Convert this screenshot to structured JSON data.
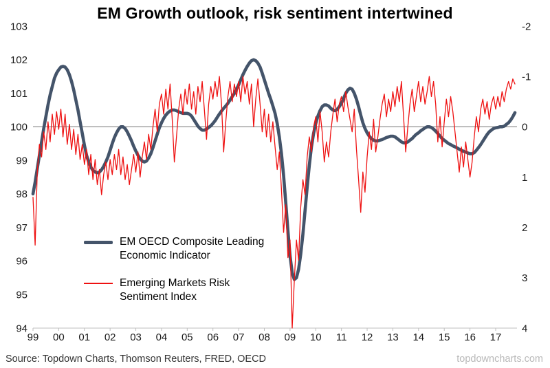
{
  "header": {
    "title": "EM Growth outlook, risk sentiment intertwined"
  },
  "legend": {
    "items": [
      {
        "label": "EM OECD Composite Leading Economic Indicator",
        "color": "#44546a",
        "style": "thick"
      },
      {
        "label": "Emerging Markets Risk Sentiment Index",
        "color": "#ee1111",
        "style": "thin"
      }
    ]
  },
  "footer": {
    "source": "Source: Topdown Charts, Thomson Reuters, FRED, OECD",
    "watermark": "topdowncharts.com"
  },
  "chart_data": {
    "type": "line",
    "title": "EM Growth outlook, risk sentiment intertwined",
    "x_axis": {
      "range": [
        1999,
        2017.83
      ],
      "tick_years": [
        1999,
        2000,
        2001,
        2002,
        2003,
        2004,
        2005,
        2006,
        2007,
        2008,
        2009,
        2010,
        2011,
        2012,
        2013,
        2014,
        2015,
        2016,
        2017
      ],
      "tick_labels": [
        "99",
        "00",
        "01",
        "02",
        "03",
        "04",
        "05",
        "06",
        "07",
        "08",
        "09",
        "10",
        "11",
        "12",
        "13",
        "14",
        "15",
        "16",
        "17"
      ]
    },
    "y_axis_left": {
      "min": 94,
      "max": 103,
      "ticks": [
        103,
        102,
        101,
        100,
        99,
        98,
        97,
        96,
        95,
        94
      ]
    },
    "y_axis_right": {
      "top": -2,
      "bottom": 4,
      "ticks": [
        -2,
        -1,
        0,
        1,
        2,
        3,
        4
      ]
    },
    "reference_line": {
      "axis": "left",
      "value": 100,
      "color": "#9a9a9a"
    },
    "axis_line_color": "#bfbfbf",
    "series": [
      {
        "name": "EM OECD Composite Leading Economic Indicator",
        "axis": "left",
        "color": "#44546a",
        "width": 4.6,
        "x_start": 1999.0,
        "x_step_years": 0.0833333,
        "values": [
          98.0,
          98.35,
          98.75,
          99.15,
          99.55,
          99.95,
          100.3,
          100.65,
          100.95,
          101.2,
          101.45,
          101.6,
          101.7,
          101.78,
          101.8,
          101.78,
          101.7,
          101.55,
          101.35,
          101.1,
          100.8,
          100.5,
          100.15,
          99.8,
          99.45,
          99.15,
          98.95,
          98.8,
          98.7,
          98.65,
          98.63,
          98.65,
          98.72,
          98.82,
          98.95,
          99.1,
          99.3,
          99.5,
          99.68,
          99.82,
          99.93,
          100.0,
          100.0,
          99.95,
          99.85,
          99.72,
          99.58,
          99.42,
          99.28,
          99.15,
          99.05,
          98.98,
          98.95,
          98.98,
          99.07,
          99.2,
          99.38,
          99.58,
          99.78,
          99.97,
          100.12,
          100.25,
          100.35,
          100.42,
          100.47,
          100.5,
          100.5,
          100.48,
          100.45,
          100.42,
          100.4,
          100.4,
          100.4,
          100.38,
          100.32,
          100.22,
          100.12,
          100.02,
          99.95,
          99.9,
          99.9,
          99.93,
          99.98,
          100.03,
          100.1,
          100.18,
          100.28,
          100.38,
          100.47,
          100.55,
          100.62,
          100.7,
          100.8,
          100.9,
          101.0,
          101.12,
          101.25,
          101.4,
          101.55,
          101.68,
          101.8,
          101.9,
          101.97,
          102.0,
          101.97,
          101.9,
          101.78,
          101.6,
          101.4,
          101.2,
          101.0,
          100.82,
          100.62,
          100.4,
          100.1,
          99.7,
          99.2,
          98.55,
          97.75,
          96.9,
          96.15,
          95.65,
          95.45,
          95.5,
          95.75,
          96.2,
          96.8,
          97.5,
          98.2,
          98.85,
          99.4,
          99.8,
          100.1,
          100.32,
          100.48,
          100.6,
          100.65,
          100.65,
          100.62,
          100.55,
          100.5,
          100.48,
          100.52,
          100.6,
          100.7,
          100.85,
          101.0,
          101.1,
          101.15,
          101.12,
          101.0,
          100.82,
          100.6,
          100.35,
          100.12,
          99.95,
          99.82,
          99.72,
          99.65,
          99.6,
          99.58,
          99.58,
          99.6,
          99.62,
          99.65,
          99.68,
          99.7,
          99.72,
          99.72,
          99.7,
          99.65,
          99.6,
          99.55,
          99.52,
          99.52,
          99.55,
          99.6,
          99.65,
          99.72,
          99.78,
          99.82,
          99.88,
          99.92,
          99.97,
          100.0,
          100.0,
          99.98,
          99.93,
          99.87,
          99.8,
          99.72,
          99.65,
          99.6,
          99.55,
          99.5,
          99.47,
          99.43,
          99.4,
          99.37,
          99.33,
          99.3,
          99.27,
          99.25,
          99.22,
          99.2,
          99.2,
          99.23,
          99.3,
          99.38,
          99.47,
          99.57,
          99.67,
          99.77,
          99.85,
          99.9,
          99.95,
          99.97,
          99.98,
          100.0,
          100.0,
          100.02,
          100.07,
          100.12,
          100.2,
          100.3,
          100.42
        ]
      },
      {
        "name": "Emerging Markets Risk Sentiment Index",
        "axis": "right",
        "color": "#ee1111",
        "width": 1.3,
        "x_start": 1999.0,
        "x_step_years": 0.0833333,
        "values": [
          1.4,
          2.35,
          0.9,
          0.35,
          0.6,
          0.1,
          0.45,
          -0.1,
          0.3,
          -0.25,
          0.15,
          -0.3,
          0.05,
          -0.35,
          0.2,
          -0.25,
          0.35,
          -0.05,
          0.45,
          0.05,
          0.55,
          0.15,
          0.65,
          0.35,
          0.75,
          0.45,
          0.95,
          0.55,
          1.05,
          0.65,
          1.15,
          0.85,
          1.35,
          0.95,
          0.7,
          1.05,
          0.65,
          0.95,
          0.55,
          0.85,
          0.45,
          0.95,
          0.6,
          1.05,
          0.75,
          1.15,
          0.85,
          0.55,
          0.9,
          0.5,
          1.0,
          0.6,
          0.3,
          0.65,
          0.15,
          0.45,
          0.0,
          -0.35,
          0.1,
          -0.45,
          -0.65,
          -0.25,
          -0.75,
          -0.35,
          -0.85,
          -0.15,
          0.7,
          0.2,
          -0.35,
          -0.65,
          -0.25,
          -0.75,
          -0.45,
          -0.85,
          -0.35,
          -0.7,
          -0.25,
          -0.8,
          -0.5,
          -0.9,
          -0.35,
          0.25,
          -0.45,
          -0.8,
          -0.55,
          -0.9,
          -0.6,
          -1.0,
          -0.45,
          0.5,
          -0.1,
          -0.6,
          -0.9,
          -0.5,
          -0.85,
          -0.6,
          -0.9,
          -0.5,
          -1.0,
          -0.65,
          -0.9,
          -0.45,
          -0.85,
          0.0,
          -0.55,
          -0.95,
          -0.45,
          0.1,
          -0.35,
          0.2,
          -0.25,
          0.3,
          -0.1,
          0.4,
          0.85,
          0.5,
          1.25,
          2.1,
          1.55,
          2.6,
          2.25,
          4.0,
          3.05,
          2.25,
          2.65,
          1.6,
          1.05,
          1.35,
          0.6,
          0.2,
          0.5,
          0.0,
          -0.2,
          0.3,
          -0.3,
          0.1,
          0.7,
          0.3,
          0.6,
          0.1,
          -0.25,
          -0.55,
          -0.1,
          -0.45,
          -0.6,
          -0.3,
          -0.7,
          -0.4,
          -0.15,
          0.1,
          -0.35,
          0.45,
          1.05,
          1.7,
          0.9,
          1.3,
          0.6,
          0.1,
          0.45,
          -0.15,
          0.5,
          0.2,
          -0.15,
          -0.45,
          -0.65,
          -0.2,
          -0.55,
          -0.3,
          -0.7,
          -0.4,
          -0.8,
          -0.5,
          -0.9,
          -0.2,
          0.5,
          0.0,
          -0.45,
          -0.75,
          -0.3,
          -0.6,
          -0.9,
          -0.5,
          -0.8,
          -0.45,
          -0.7,
          -1.0,
          -0.6,
          -0.9,
          -0.45,
          0.3,
          -0.2,
          0.4,
          -0.1,
          -0.55,
          -0.2,
          -0.6,
          -0.3,
          0.1,
          0.5,
          0.9,
          0.4,
          0.8,
          0.3,
          0.65,
          1.0,
          0.7,
          0.2,
          -0.2,
          0.1,
          -0.35,
          -0.55,
          -0.25,
          -0.5,
          -0.15,
          -0.45,
          -0.6,
          -0.35,
          -0.6,
          -0.4,
          -0.7,
          -0.5,
          -0.75,
          -0.9,
          -0.75,
          -0.95,
          -0.85
        ]
      }
    ]
  }
}
